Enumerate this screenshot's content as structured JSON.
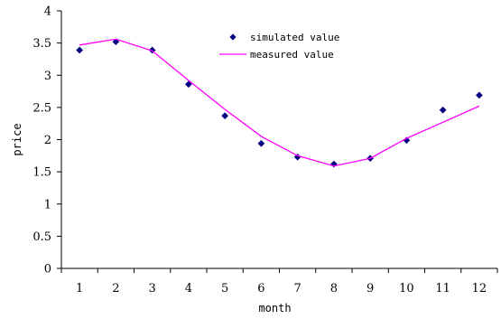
{
  "chart_data": {
    "type": "line",
    "xlabel": "month",
    "ylabel": "price",
    "x": [
      1,
      2,
      3,
      4,
      5,
      6,
      7,
      8,
      9,
      10,
      11,
      12
    ],
    "xlim": [
      0.5,
      12.5
    ],
    "ylim": [
      0,
      4
    ],
    "yticks": [
      "0",
      "0.5",
      "1",
      "1.5",
      "2",
      "2.5",
      "3",
      "3.5",
      "4"
    ],
    "xticks": [
      "1",
      "2",
      "3",
      "4",
      "5",
      "6",
      "7",
      "8",
      "9",
      "10",
      "11",
      "12"
    ],
    "grid": false,
    "legend_position": "top-center",
    "series": [
      {
        "name": "simulated value",
        "kind": "scatter",
        "marker": "diamond",
        "color": "#000080",
        "values": [
          3.39,
          3.52,
          3.39,
          2.86,
          2.37,
          1.94,
          1.73,
          1.62,
          1.71,
          1.99,
          2.46,
          2.69
        ]
      },
      {
        "name": "measured value",
        "kind": "line",
        "color": "#ff00ff",
        "values": [
          3.47,
          3.56,
          3.38,
          2.92,
          2.47,
          2.05,
          1.75,
          1.59,
          1.71,
          2.02,
          2.27,
          2.52
        ]
      }
    ]
  }
}
